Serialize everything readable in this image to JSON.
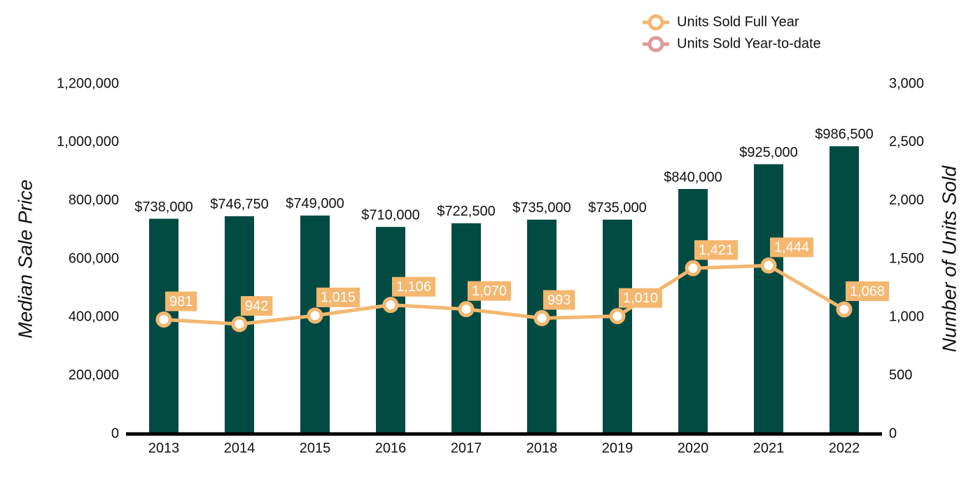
{
  "chart_data": {
    "type": "bar",
    "y_label": "Median Sale Price",
    "y2_label": "Number of Units Sold",
    "categories": [
      "2013",
      "2014",
      "2015",
      "2016",
      "2017",
      "2018",
      "2019",
      "2020",
      "2021",
      "2022"
    ],
    "series": [
      {
        "type": "bar",
        "color": "#024b42",
        "values": [
          738000,
          746750,
          749000,
          710000,
          722500,
          735000,
          735000,
          840000,
          925000,
          986500
        ],
        "value_labels": [
          "$738,000",
          "$746,750",
          "$749,000",
          "$710,000",
          "$722,500",
          "$735,000",
          "$735,000",
          "$840,000",
          "$925,000",
          "$986,500"
        ]
      },
      {
        "type": "line",
        "name": "Units Sold Full Year",
        "color": "#f4b770",
        "axis": "y2",
        "values": [
          981,
          942,
          1015,
          1106,
          1070,
          993,
          1010,
          1421,
          1444,
          1068
        ],
        "value_labels": [
          "981",
          "942",
          "1,015",
          "1,106",
          "1,070",
          "993",
          "1,010",
          "1,421",
          "1,444",
          "1,068"
        ]
      },
      {
        "type": "line",
        "name": "Units Sold Year-to-date",
        "color": "#e0999a",
        "axis": "y2",
        "values": [
          null,
          null,
          null,
          null,
          null,
          null,
          null,
          null,
          null,
          null
        ]
      }
    ],
    "ylim": [
      0,
      1200000
    ],
    "yticks": [
      0,
      {
        "value": 200000,
        "label": "200,000"
      },
      {
        "value": 400000,
        "label": "400,000"
      },
      {
        "value": 600000,
        "label": "600,000"
      },
      {
        "value": 800000,
        "label": "800,000"
      },
      {
        "value": 1000000,
        "label": "1,000,000"
      },
      {
        "value": 1200000,
        "label": "1,200,000"
      }
    ],
    "y2lim": [
      0,
      3000
    ],
    "y2ticks": [
      0,
      500,
      {
        "value": 1000,
        "label": "1,000"
      },
      {
        "value": 1500,
        "label": "1,500"
      },
      {
        "value": 2000,
        "label": "2,000"
      },
      {
        "value": 2500,
        "label": "2,500"
      },
      {
        "value": 3000,
        "label": "3,000"
      }
    ],
    "legend": "top-right"
  }
}
